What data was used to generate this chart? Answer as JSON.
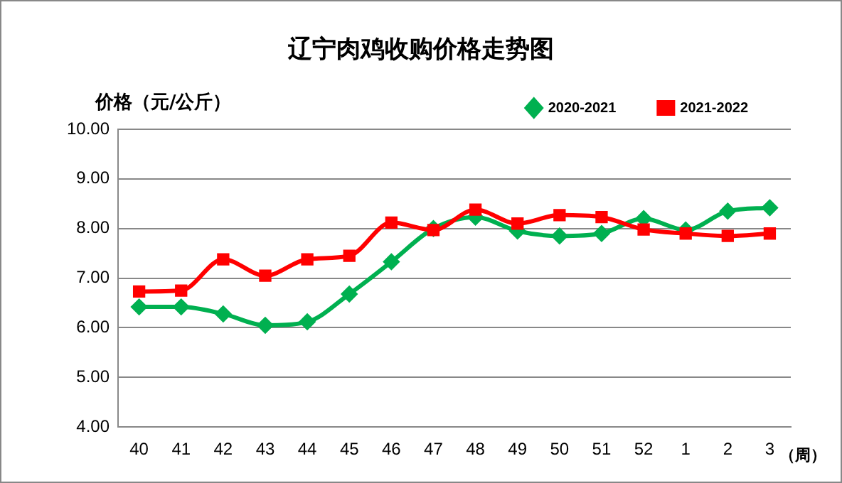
{
  "chart_data": {
    "type": "line",
    "title": "辽宁肉鸡收购价格走势图",
    "ylabel": "价格（元/公斤）",
    "xlabel": "（周）",
    "categories": [
      "40",
      "41",
      "42",
      "43",
      "44",
      "45",
      "46",
      "47",
      "48",
      "49",
      "50",
      "51",
      "52",
      "1",
      "2",
      "3"
    ],
    "series": [
      {
        "name": "2020-2021",
        "color": "#00b050",
        "marker": "diamond",
        "values": [
          6.42,
          6.42,
          6.28,
          6.05,
          6.12,
          6.68,
          7.33,
          8.0,
          8.23,
          7.95,
          7.85,
          7.9,
          8.2,
          7.97,
          8.35,
          8.42
        ]
      },
      {
        "name": "2021-2022",
        "color": "#ff0000",
        "marker": "square",
        "values": [
          6.73,
          6.75,
          7.38,
          7.05,
          7.38,
          7.45,
          8.12,
          7.97,
          8.38,
          8.1,
          8.27,
          8.23,
          7.98,
          7.9,
          7.85,
          7.9
        ]
      }
    ],
    "ylim": [
      4,
      10
    ],
    "yticks": [
      {
        "value": 4,
        "label": "4.00"
      },
      {
        "value": 5,
        "label": "5.00"
      },
      {
        "value": 6,
        "label": "6.00"
      },
      {
        "value": 7,
        "label": "7.00"
      },
      {
        "value": 8,
        "label": "8.00"
      },
      {
        "value": 9,
        "label": "9.00"
      },
      {
        "value": 10,
        "label": "10.00"
      }
    ],
    "grid": "y",
    "legend": "top right"
  }
}
